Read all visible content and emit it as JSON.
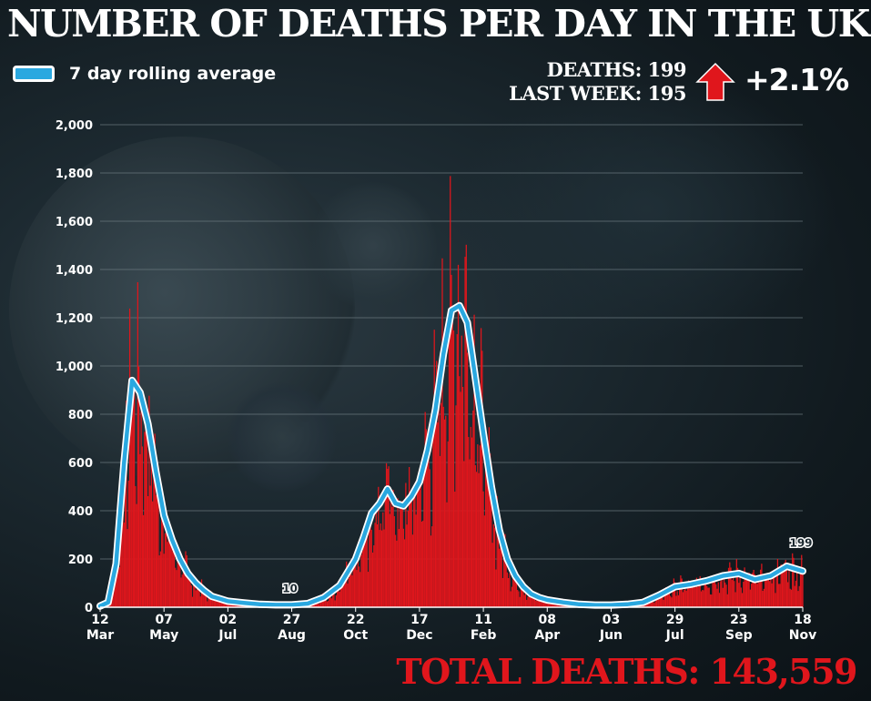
{
  "header": {
    "title": "NUMBER OF DEATHS PER DAY IN THE UK"
  },
  "legend": {
    "label": "7 day rolling average"
  },
  "stats": {
    "deaths_label": "DEATHS:",
    "deaths_value": "199",
    "last_week_label": "LAST WEEK:",
    "last_week_value": "195",
    "change": "+2.1%"
  },
  "footer": {
    "total": "TOTAL DEATHS: 143,559"
  },
  "colors": {
    "bars": "#e0161c",
    "average_line": "#2aa8e0",
    "total_text": "#e0161c"
  },
  "chart_data": {
    "type": "bar",
    "ylim": [
      0,
      2000
    ],
    "yticks": [
      "0",
      "200",
      "400",
      "600",
      "800",
      "1,000",
      "1,200",
      "1,400",
      "1,600",
      "1,800",
      "2,000"
    ],
    "ytick_values": [
      0,
      200,
      400,
      600,
      800,
      1000,
      1200,
      1400,
      1600,
      1800,
      2000
    ],
    "x_start": "2020-03-12",
    "x_end": "2021-11-18",
    "xticks": [
      {
        "date": "2020-03-12",
        "day": "12",
        "month": "Mar"
      },
      {
        "date": "2020-05-07",
        "day": "07",
        "month": "May"
      },
      {
        "date": "2020-07-02",
        "day": "02",
        "month": "Jul"
      },
      {
        "date": "2020-08-27",
        "day": "27",
        "month": "Aug"
      },
      {
        "date": "2020-10-22",
        "day": "22",
        "month": "Oct"
      },
      {
        "date": "2020-12-17",
        "day": "17",
        "month": "Dec"
      },
      {
        "date": "2021-02-11",
        "day": "11",
        "month": "Feb"
      },
      {
        "date": "2021-04-08",
        "day": "08",
        "month": "Apr"
      },
      {
        "date": "2021-06-03",
        "day": "03",
        "month": "Jun"
      },
      {
        "date": "2021-07-29",
        "day": "29",
        "month": "Jul"
      },
      {
        "date": "2021-09-23",
        "day": "23",
        "month": "Sep"
      },
      {
        "date": "2021-11-18",
        "day": "18",
        "month": "Nov"
      }
    ],
    "grid": true,
    "legend": "top-left",
    "series": [
      {
        "name": "7 day rolling average",
        "type": "line",
        "points": [
          [
            "2020-03-12",
            5
          ],
          [
            "2020-03-19",
            20
          ],
          [
            "2020-03-26",
            180
          ],
          [
            "2020-04-02",
            600
          ],
          [
            "2020-04-09",
            940
          ],
          [
            "2020-04-16",
            890
          ],
          [
            "2020-04-23",
            760
          ],
          [
            "2020-04-30",
            560
          ],
          [
            "2020-05-07",
            380
          ],
          [
            "2020-05-14",
            280
          ],
          [
            "2020-05-21",
            200
          ],
          [
            "2020-05-28",
            140
          ],
          [
            "2020-06-04",
            100
          ],
          [
            "2020-06-11",
            70
          ],
          [
            "2020-06-18",
            45
          ],
          [
            "2020-06-25",
            35
          ],
          [
            "2020-07-02",
            25
          ],
          [
            "2020-07-16",
            18
          ],
          [
            "2020-07-30",
            12
          ],
          [
            "2020-08-13",
            10
          ],
          [
            "2020-08-27",
            10
          ],
          [
            "2020-09-10",
            15
          ],
          [
            "2020-09-24",
            40
          ],
          [
            "2020-10-08",
            90
          ],
          [
            "2020-10-22",
            200
          ],
          [
            "2020-10-29",
            290
          ],
          [
            "2020-11-05",
            390
          ],
          [
            "2020-11-12",
            430
          ],
          [
            "2020-11-19",
            490
          ],
          [
            "2020-11-26",
            430
          ],
          [
            "2020-12-03",
            420
          ],
          [
            "2020-12-10",
            460
          ],
          [
            "2020-12-17",
            520
          ],
          [
            "2020-12-24",
            650
          ],
          [
            "2020-12-31",
            820
          ],
          [
            "2021-01-07",
            1050
          ],
          [
            "2021-01-14",
            1230
          ],
          [
            "2021-01-21",
            1250
          ],
          [
            "2021-01-28",
            1180
          ],
          [
            "2021-02-04",
            950
          ],
          [
            "2021-02-11",
            720
          ],
          [
            "2021-02-18",
            500
          ],
          [
            "2021-02-25",
            320
          ],
          [
            "2021-03-04",
            200
          ],
          [
            "2021-03-11",
            130
          ],
          [
            "2021-03-18",
            85
          ],
          [
            "2021-03-25",
            55
          ],
          [
            "2021-04-01",
            40
          ],
          [
            "2021-04-08",
            30
          ],
          [
            "2021-04-22",
            20
          ],
          [
            "2021-05-06",
            12
          ],
          [
            "2021-05-20",
            9
          ],
          [
            "2021-06-03",
            9
          ],
          [
            "2021-06-17",
            12
          ],
          [
            "2021-07-01",
            20
          ],
          [
            "2021-07-15",
            50
          ],
          [
            "2021-07-29",
            85
          ],
          [
            "2021-08-12",
            95
          ],
          [
            "2021-08-26",
            110
          ],
          [
            "2021-09-09",
            130
          ],
          [
            "2021-09-23",
            140
          ],
          [
            "2021-10-07",
            115
          ],
          [
            "2021-10-21",
            130
          ],
          [
            "2021-11-04",
            170
          ],
          [
            "2021-11-18",
            150
          ]
        ]
      }
    ],
    "annotations": [
      {
        "date": "2020-08-27",
        "value": 10,
        "text": "10"
      },
      {
        "date": "2021-11-18",
        "value": 199,
        "text": "199"
      }
    ]
  }
}
